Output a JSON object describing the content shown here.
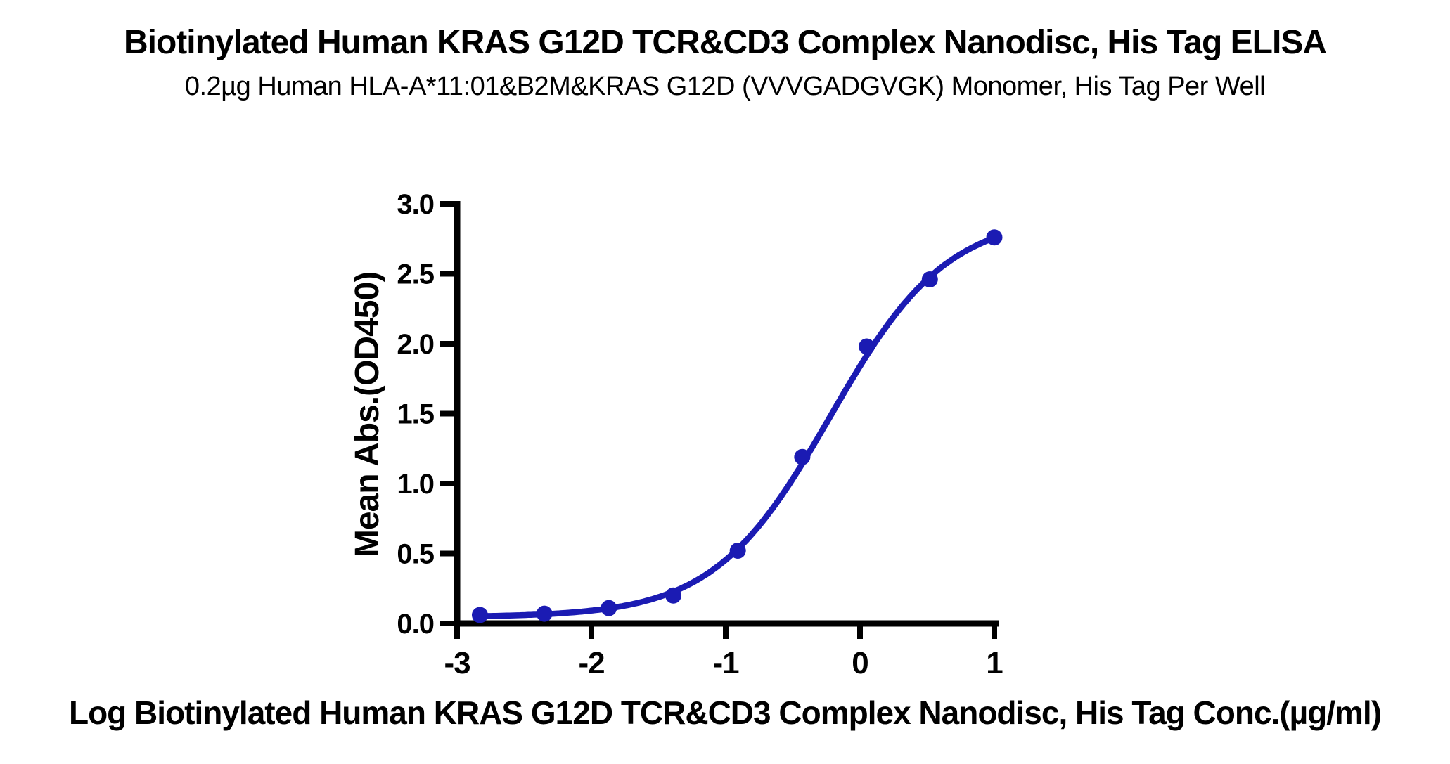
{
  "chart_data": {
    "type": "line",
    "title": "Biotinylated Human KRAS G12D TCR&CD3 Complex Nanodisc, His Tag ELISA",
    "subtitle": "0.2µg Human HLA-A*11:01&B2M&KRAS G12D (VVVGADGVGK) Monomer, His Tag Per Well",
    "xlabel": "Log Biotinylated Human KRAS G12D TCR&CD3 Complex Nanodisc, His Tag Conc.(µg/ml)",
    "ylabel": "Mean Abs.(OD450)",
    "series": [
      {
        "name": "Biotinylated Human KRAS G12D TCR&CD3 Complex Nanodisc, His Tag",
        "x": [
          -2.83,
          -2.35,
          -1.87,
          -1.39,
          -0.91,
          -0.43,
          0.05,
          0.52,
          1.0
        ],
        "values": [
          0.06,
          0.07,
          0.11,
          0.2,
          0.52,
          1.19,
          1.98,
          2.46,
          2.76
        ]
      }
    ],
    "fit_curve": {
      "model": "4PL",
      "bottom": 0.045,
      "top": 2.92,
      "logEC50": -0.22,
      "hill": 1.0
    },
    "xlim": [
      -3,
      1
    ],
    "ylim": [
      0,
      3
    ],
    "xticks": [
      -3,
      -2,
      -1,
      0,
      1
    ],
    "xtick_labels": [
      "-3",
      "-2",
      "-1",
      "0",
      "1"
    ],
    "yticks": [
      0,
      0.5,
      1,
      1.5,
      2,
      2.5,
      3
    ],
    "ytick_labels": [
      "0.0",
      "0.5",
      "1.0",
      "1.5",
      "2.0",
      "2.5",
      "3.0"
    ],
    "grid": false,
    "legend": "none",
    "marker": "circle",
    "colors": {
      "curve": "#1B1BB3",
      "points": "#1B1BB3",
      "axis": "#000000",
      "text": "#000000",
      "background": "#ffffff"
    }
  }
}
